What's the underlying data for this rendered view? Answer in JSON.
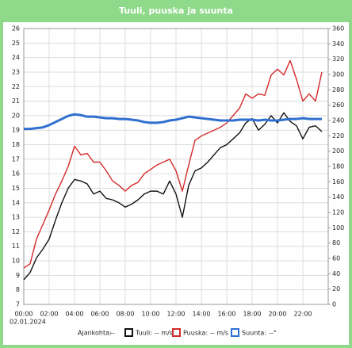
{
  "chart_data": {
    "type": "line",
    "title": "Tuuli, puuska ja suunta",
    "x_sublabel": "02.01.2024",
    "time_label": "Ajankohta:",
    "time_readout": "--",
    "x": [
      0,
      0.5,
      1,
      1.5,
      2,
      2.5,
      3,
      3.5,
      4,
      4.5,
      5,
      5.5,
      6,
      6.5,
      7,
      7.5,
      8,
      8.5,
      9,
      9.5,
      10,
      10.5,
      11,
      11.5,
      12,
      12.5,
      13,
      13.5,
      14,
      14.5,
      15,
      15.5,
      16,
      16.5,
      17,
      17.5,
      18,
      18.5,
      19,
      19.5,
      20,
      20.5,
      21,
      21.5,
      22,
      22.5,
      23,
      23.5
    ],
    "xlim": [
      0,
      24
    ],
    "xticks": [
      {
        "value": 0,
        "label": "00:00"
      },
      {
        "value": 2,
        "label": "02:00"
      },
      {
        "value": 4,
        "label": "04:00"
      },
      {
        "value": 6,
        "label": "06:00"
      },
      {
        "value": 8,
        "label": "08:00"
      },
      {
        "value": 10,
        "label": "10:00"
      },
      {
        "value": 12,
        "label": "12:00"
      },
      {
        "value": 14,
        "label": "14:00"
      },
      {
        "value": 16,
        "label": "16:00"
      },
      {
        "value": 18,
        "label": "18:00"
      },
      {
        "value": 20,
        "label": "20:00"
      },
      {
        "value": 22,
        "label": "22:00"
      }
    ],
    "ylim": [
      7,
      26
    ],
    "yticks": [
      7,
      8,
      9,
      10,
      11,
      12,
      13,
      14,
      15,
      16,
      17,
      18,
      19,
      20,
      21,
      22,
      23,
      24,
      25,
      26
    ],
    "y2lim": [
      0,
      360
    ],
    "y2ticks": [
      0,
      20,
      40,
      60,
      80,
      100,
      120,
      140,
      160,
      180,
      200,
      220,
      240,
      260,
      280,
      300,
      320,
      340,
      360
    ],
    "grid": true,
    "series": [
      {
        "name": "Tuuli:",
        "readout": "-- m/s",
        "color": "#111111",
        "values": [
          8.7,
          9.2,
          10.2,
          10.8,
          11.5,
          12.8,
          14.0,
          15.0,
          15.6,
          15.5,
          15.3,
          14.6,
          14.8,
          14.3,
          14.2,
          14.0,
          13.7,
          13.9,
          14.2,
          14.6,
          14.8,
          14.8,
          14.6,
          15.5,
          14.6,
          13.0,
          15.2,
          16.2,
          16.4,
          16.8,
          17.3,
          17.8,
          18.0,
          18.4,
          18.8,
          19.5,
          19.8,
          19.0,
          19.4,
          20.0,
          19.5,
          20.2,
          19.6,
          19.3,
          18.4,
          19.2,
          19.3,
          18.9
        ]
      },
      {
        "name": "Puuska:",
        "readout": "-- m/s",
        "color": "#d42a2a",
        "values": [
          9.5,
          9.8,
          11.5,
          12.5,
          13.5,
          14.6,
          15.5,
          16.5,
          17.9,
          17.3,
          17.4,
          16.8,
          16.8,
          16.2,
          15.5,
          15.2,
          14.8,
          15.2,
          15.4,
          16.0,
          16.3,
          16.6,
          16.8,
          17.0,
          16.2,
          14.8,
          16.6,
          18.3,
          18.6,
          18.8,
          19.0,
          19.2,
          19.5,
          20.0,
          20.5,
          21.5,
          21.2,
          21.5,
          21.4,
          22.8,
          23.2,
          22.8,
          23.8,
          22.5,
          21.0,
          21.5,
          21.0,
          23.0
        ]
      },
      {
        "name": "Suunta:",
        "readout": "--°",
        "color": "#2f6fd0",
        "axis": "y2",
        "values": [
          229,
          229,
          230,
          231,
          234,
          238,
          242,
          246,
          248,
          247,
          245,
          245,
          244,
          243,
          243,
          242,
          242,
          241,
          240,
          238,
          237,
          237,
          238,
          240,
          241,
          243,
          245,
          244,
          243,
          242,
          241,
          240,
          240,
          240,
          241,
          241,
          241,
          240,
          241,
          240,
          240,
          241,
          242,
          242,
          243,
          242,
          242,
          242
        ]
      }
    ]
  }
}
